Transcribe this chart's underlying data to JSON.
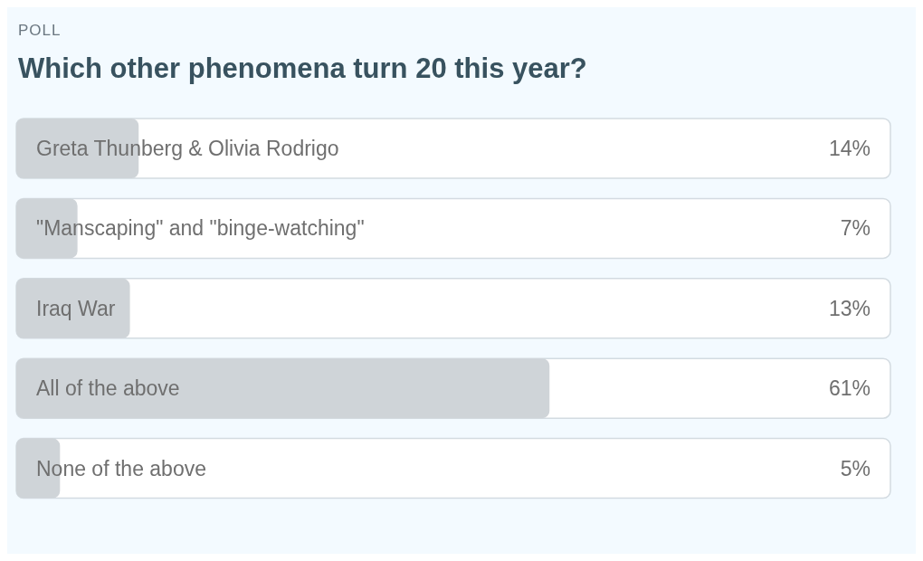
{
  "chart_data": {
    "type": "bar",
    "orientation": "horizontal",
    "subtitle": "POLL",
    "title": "Which other phenomena turn 20 this year?",
    "categories": [
      "Greta Thunberg & Olivia Rodrigo",
      "\"Manscaping\" and \"binge-watching\"",
      "Iraq War",
      "All of the above",
      "None of the above"
    ],
    "values": [
      14,
      7,
      13,
      61,
      5
    ],
    "value_labels": [
      "14%",
      "7%",
      "13%",
      "61%",
      "5%"
    ],
    "color": "#cfd4d8",
    "xlim": [
      0,
      100
    ],
    "tick_labels": "y"
  }
}
